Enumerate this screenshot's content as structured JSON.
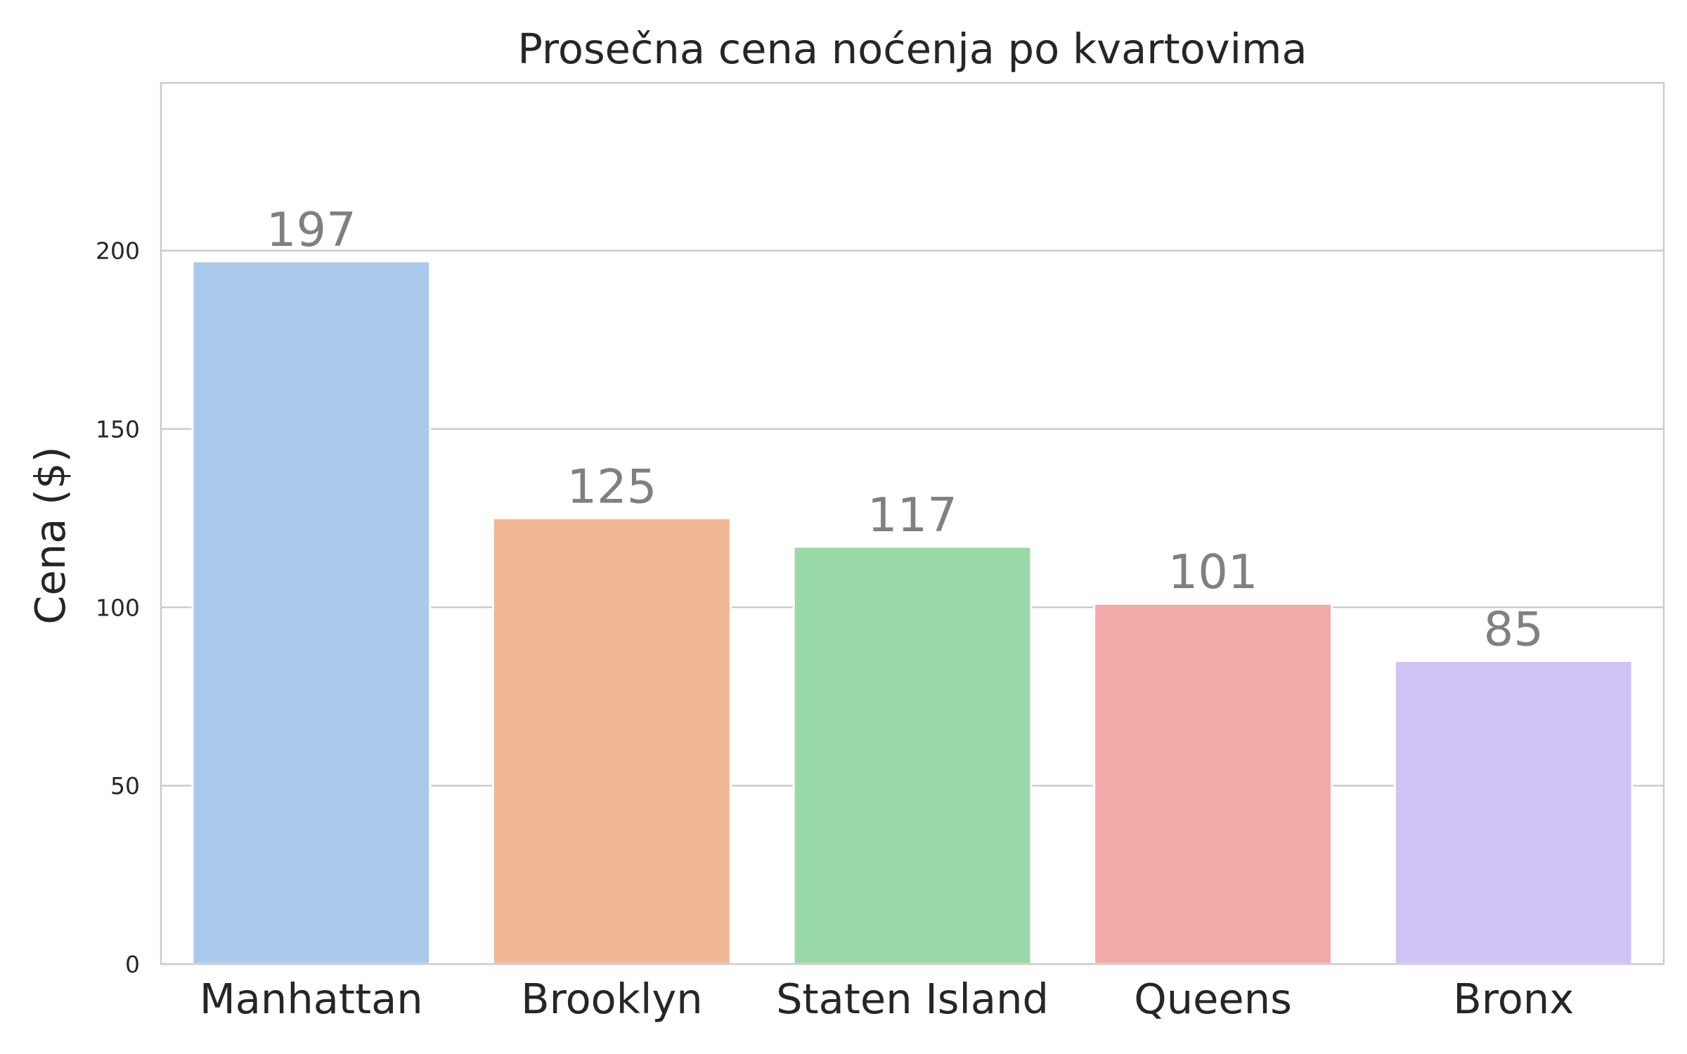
{
  "chart_data": {
    "type": "bar",
    "title": "Prosečna cena noćenja po kvartovima",
    "xlabel": "",
    "ylabel": "Cena ($)",
    "categories": [
      "Manhattan",
      "Brooklyn",
      "Staten Island",
      "Queens",
      "Bronx"
    ],
    "values": [
      197,
      125,
      117,
      101,
      85
    ],
    "value_labels": [
      "197",
      "125",
      "117",
      "101",
      "85"
    ],
    "colors": [
      "#abc9ec",
      "#f0b792",
      "#99d9a8",
      "#f2aaa8",
      "#d1c3f5"
    ],
    "label_color": "#808080",
    "grid_color": "#cccccc",
    "ylim": [
      0,
      247
    ],
    "yticks": [
      0,
      50,
      100,
      150,
      200
    ],
    "ytick_labels": [
      "0",
      "50",
      "100",
      "150",
      "200"
    ],
    "grid": true,
    "grid_axis": "y",
    "legend": "none"
  }
}
